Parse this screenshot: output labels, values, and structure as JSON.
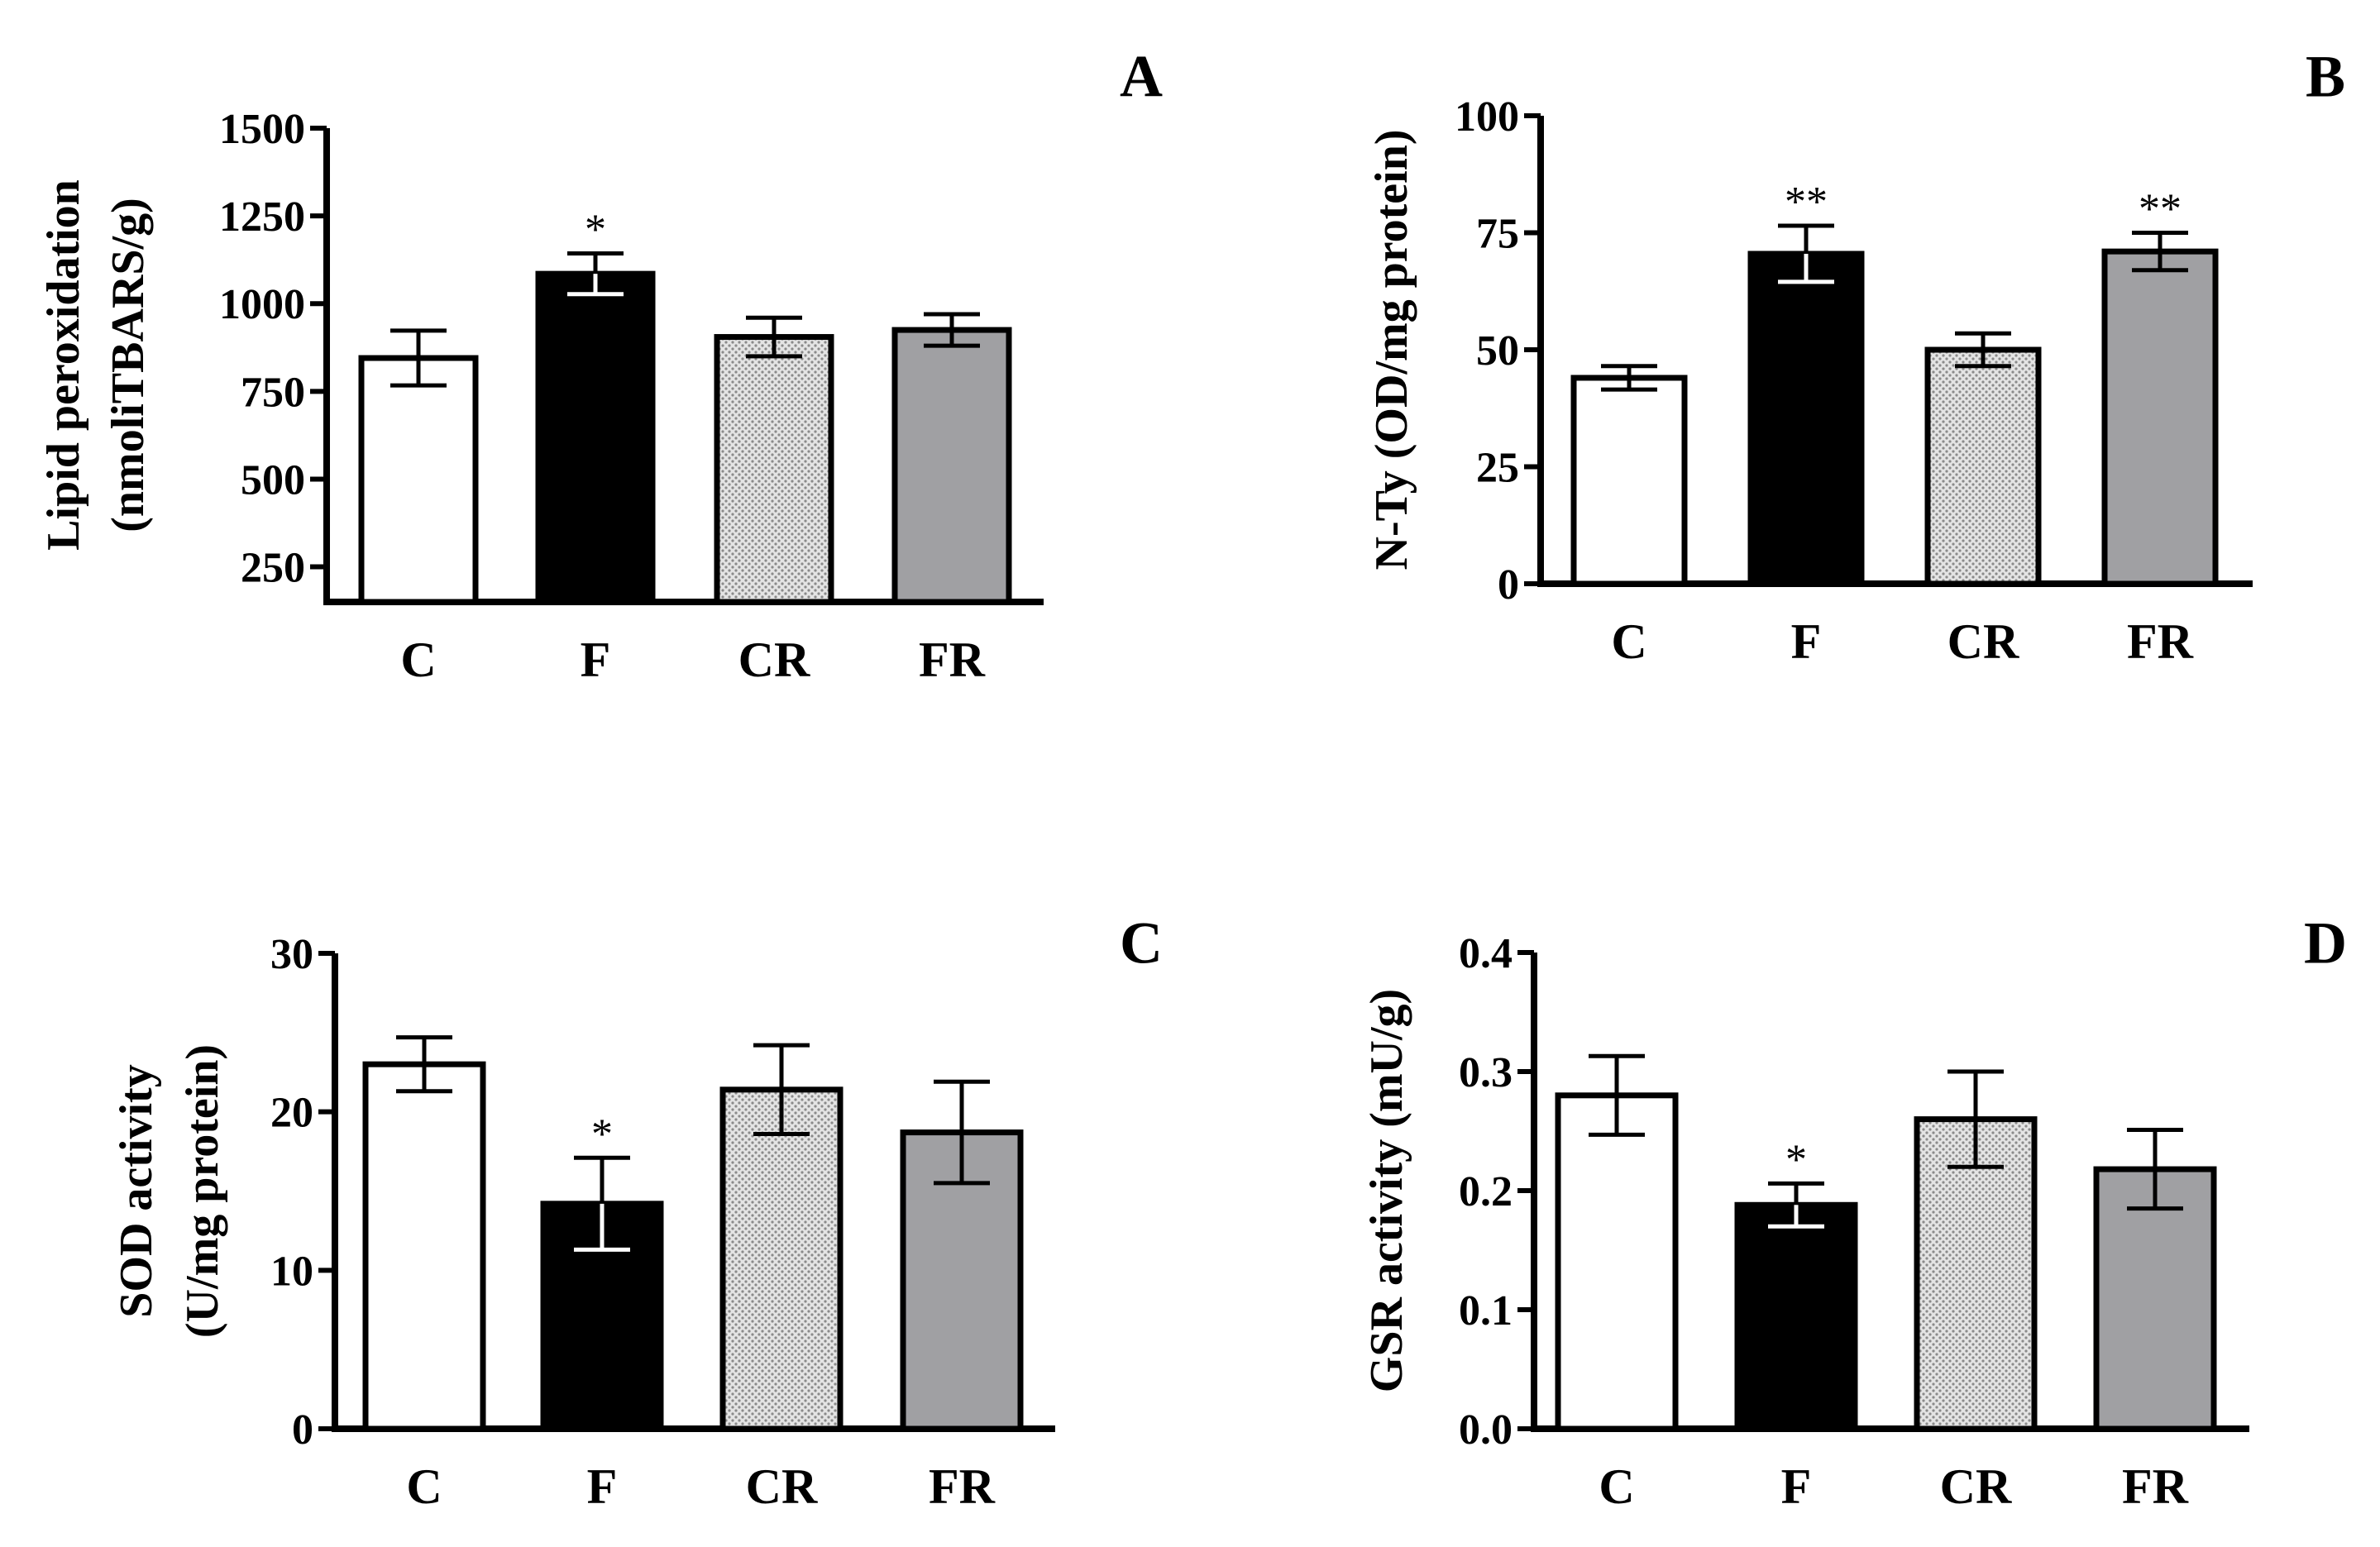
{
  "figure": {
    "background": "#ffffff"
  },
  "styles": {
    "C": {
      "fill": "#ffffff",
      "pattern": "none"
    },
    "F": {
      "fill": "#000000",
      "pattern": "none"
    },
    "CR": {
      "fill": "#d6d6d6",
      "pattern": "dots"
    },
    "FR": {
      "fill": "#a0a0a3",
      "pattern": "none"
    }
  },
  "chart_data": [
    {
      "id": "A",
      "type": "bar",
      "panel_label": "A",
      "title": "",
      "ylabel": [
        "Lipid peroxidation",
        "(nmoliTBARS/g)"
      ],
      "xlabel": "",
      "categories": [
        "C",
        "F",
        "CR",
        "FR"
      ],
      "values": [
        845,
        1085,
        905,
        925
      ],
      "errors": [
        78,
        58,
        55,
        45
      ],
      "significance": [
        "",
        "*",
        "",
        ""
      ],
      "ylim": [
        150,
        1500
      ],
      "yticks": [
        250,
        500,
        750,
        1000,
        1250,
        1500
      ],
      "ytick_labels": [
        "250",
        "500",
        "750",
        "1000",
        "1250",
        "1500"
      ]
    },
    {
      "id": "B",
      "type": "bar",
      "panel_label": "B",
      "title": "",
      "ylabel": [
        "N-Ty (OD/mg protein)"
      ],
      "xlabel": "",
      "categories": [
        "C",
        "F",
        "CR",
        "FR"
      ],
      "values": [
        44,
        70.5,
        50,
        71
      ],
      "errors": [
        2.5,
        6,
        3.5,
        4
      ],
      "significance": [
        "",
        "**",
        "",
        "**"
      ],
      "ylim": [
        0,
        100
      ],
      "yticks": [
        0,
        25,
        50,
        75,
        100
      ],
      "ytick_labels": [
        "0",
        "25",
        "50",
        "75",
        "100"
      ]
    },
    {
      "id": "C",
      "type": "bar",
      "panel_label": "C",
      "title": "",
      "ylabel": [
        "SOD activity",
        "(U/mg protein)"
      ],
      "xlabel": "",
      "categories": [
        "C",
        "F",
        "CR",
        "FR"
      ],
      "values": [
        23,
        14.2,
        21.4,
        18.7
      ],
      "errors": [
        1.7,
        2.9,
        2.8,
        3.2
      ],
      "significance": [
        "",
        "*",
        "",
        ""
      ],
      "ylim": [
        0,
        30
      ],
      "yticks": [
        0,
        10,
        20,
        30
      ],
      "ytick_labels": [
        "0",
        "10",
        "20",
        "30"
      ]
    },
    {
      "id": "D",
      "type": "bar",
      "panel_label": "D",
      "title": "",
      "ylabel": [
        "GSR activity (mU/g)"
      ],
      "xlabel": "",
      "categories": [
        "C",
        "F",
        "CR",
        "FR"
      ],
      "values": [
        0.28,
        0.188,
        0.26,
        0.218
      ],
      "errors": [
        0.033,
        0.018,
        0.04,
        0.033
      ],
      "significance": [
        "",
        "*",
        "",
        ""
      ],
      "ylim": [
        0,
        0.4
      ],
      "yticks": [
        0,
        0.1,
        0.2,
        0.3,
        0.4
      ],
      "ytick_labels": [
        "0.0",
        "0.1",
        "0.2",
        "0.3",
        "0.4"
      ]
    }
  ]
}
